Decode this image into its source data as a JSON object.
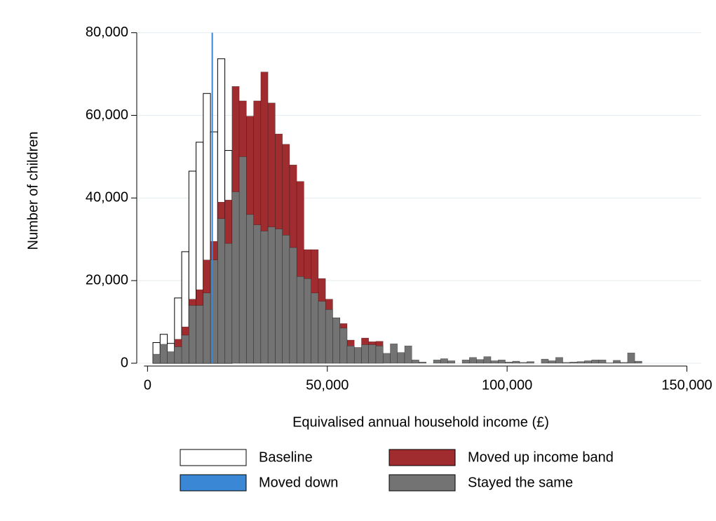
{
  "chart_data": {
    "type": "histogram",
    "xlabel": "Equivalised annual household income (£)",
    "ylabel": "Number of children",
    "bins": [
      1500,
      3500,
      5500,
      7500,
      9500,
      11500,
      13500,
      15500,
      17500,
      19500,
      21500,
      23500,
      25500,
      27500,
      29500,
      31500,
      33500,
      35500,
      37500,
      39500,
      41500,
      43500,
      45500,
      47500,
      49500,
      51500,
      53500,
      55500,
      57500,
      59500,
      61500,
      63500,
      65500,
      67500,
      69500,
      71500,
      73500,
      75500,
      77500,
      79500,
      81500,
      83500,
      85500,
      87500,
      89500,
      91500,
      93500,
      95500,
      97500,
      99500,
      101500,
      103500,
      105500,
      107500,
      109500,
      111500,
      113500,
      115500,
      117500,
      119500,
      121500,
      123500,
      125500,
      127500,
      129500,
      131500,
      133500,
      135500,
      137500
    ],
    "series": [
      {
        "name": "Baseline",
        "color": "#ffffff",
        "values": [
          5000,
          7000,
          4800,
          15800,
          27000,
          46500,
          53500,
          65300,
          56000,
          73700,
          51500,
          null,
          null,
          null,
          null,
          null,
          null,
          null,
          null,
          null,
          null,
          null,
          null,
          null,
          null,
          null,
          null,
          null,
          null,
          null,
          null,
          null,
          null,
          null,
          null,
          null,
          null,
          null,
          null,
          null,
          null,
          null,
          null,
          null,
          null,
          null,
          null,
          null,
          null,
          null,
          null,
          null,
          null,
          null,
          null,
          null,
          null,
          null,
          null,
          null,
          null,
          null,
          null,
          null,
          null,
          null,
          null,
          null
        ]
      },
      {
        "name": "Moved down",
        "color": "#3a87d6",
        "x": 18000
      },
      {
        "name": "Moved up income band",
        "color": "#a02c2f",
        "values": [
          null,
          null,
          null,
          5800,
          8800,
          15500,
          17800,
          25000,
          29500,
          39000,
          39500,
          67000,
          63500,
          59800,
          63500,
          70500,
          63000,
          55500,
          53000,
          48000,
          44000,
          27500,
          27500,
          20500,
          15500,
          11000,
          9600,
          5600,
          3800,
          6100,
          5200,
          5300,
          null,
          null,
          null,
          null,
          null,
          null,
          null,
          null,
          null,
          null,
          null,
          null,
          null,
          null,
          null,
          null,
          null,
          null,
          null,
          null,
          null,
          null,
          null,
          null,
          null,
          null,
          null,
          null,
          null,
          null,
          null,
          null,
          null,
          null,
          null,
          null
        ]
      },
      {
        "name": "Stayed the same",
        "color": "#737373",
        "values": [
          2200,
          4600,
          2800,
          4000,
          6800,
          14000,
          14000,
          17000,
          25000,
          35000,
          29000,
          41500,
          50000,
          36000,
          33500,
          32000,
          33000,
          32500,
          31000,
          28000,
          21000,
          20500,
          17000,
          15000,
          13000,
          11000,
          8500,
          4200,
          3800,
          4500,
          4500,
          4200,
          2400,
          4700,
          2600,
          4200,
          800,
          300,
          0,
          800,
          1100,
          600,
          0,
          800,
          1400,
          900,
          1600,
          600,
          800,
          300,
          500,
          200,
          400,
          0,
          1000,
          600,
          1400,
          200,
          300,
          400,
          600,
          800,
          800,
          100,
          700,
          200,
          2500,
          500
        ]
      }
    ],
    "xlim": [
      -3000,
      154000
    ],
    "xticks": [
      0,
      {
        "value": 50000,
        "label": "50,000"
      },
      {
        "value": 100000,
        "label": "100,000"
      },
      {
        "value": 150000,
        "label": "150,000"
      }
    ],
    "ylim": [
      0,
      83000
    ],
    "yticks": [
      0,
      {
        "value": 20000,
        "label": "20,000"
      },
      {
        "value": 40000,
        "label": "40,000"
      },
      {
        "value": 60000,
        "label": "60,000"
      },
      {
        "value": 80000,
        "label": "80,000"
      }
    ],
    "grid": true
  }
}
